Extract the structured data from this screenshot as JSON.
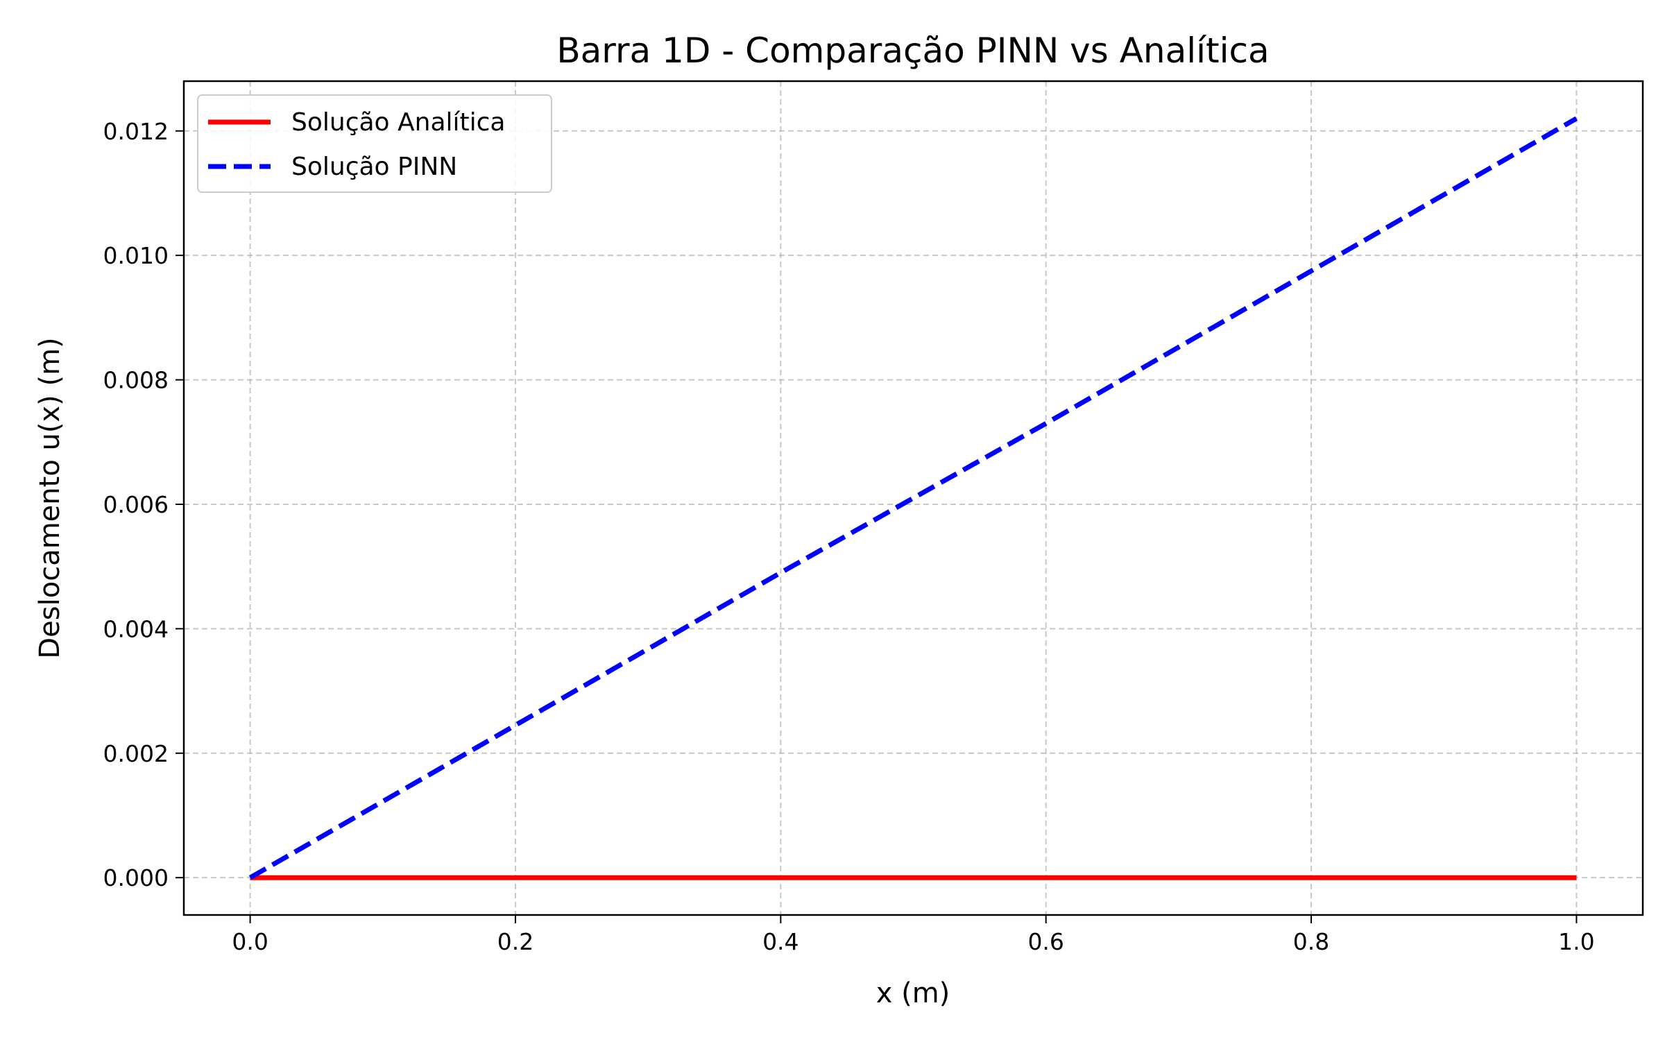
{
  "chart_data": {
    "type": "line",
    "title": "Barra 1D - Comparação PINN vs Analítica",
    "xlabel": "x (m)",
    "ylabel": "Deslocamento u(x) (m)",
    "xlim": [
      -0.05,
      1.05
    ],
    "ylim": [
      -0.0006,
      0.0128
    ],
    "xticks": [
      0.0,
      0.2,
      0.4,
      0.6,
      0.8,
      1.0
    ],
    "xtick_labels": [
      "0.0",
      "0.2",
      "0.4",
      "0.6",
      "0.8",
      "1.0"
    ],
    "yticks": [
      0.0,
      0.002,
      0.004,
      0.006,
      0.008,
      0.01,
      0.012
    ],
    "ytick_labels": [
      "0.000",
      "0.002",
      "0.004",
      "0.006",
      "0.008",
      "0.010",
      "0.012"
    ],
    "grid": true,
    "legend_position": "top-left",
    "series": [
      {
        "name": "Solução Analítica",
        "color": "#ff0000",
        "style": "solid",
        "x": [
          0.0,
          1.0
        ],
        "y": [
          0.0,
          0.0
        ]
      },
      {
        "name": "Solução PINN",
        "color": "#0000ff",
        "style": "dashed",
        "x": [
          0.0,
          0.2,
          0.4,
          0.6,
          0.8,
          1.0
        ],
        "y": [
          0.0,
          0.00245,
          0.0049,
          0.0073,
          0.00975,
          0.0122
        ]
      }
    ]
  }
}
